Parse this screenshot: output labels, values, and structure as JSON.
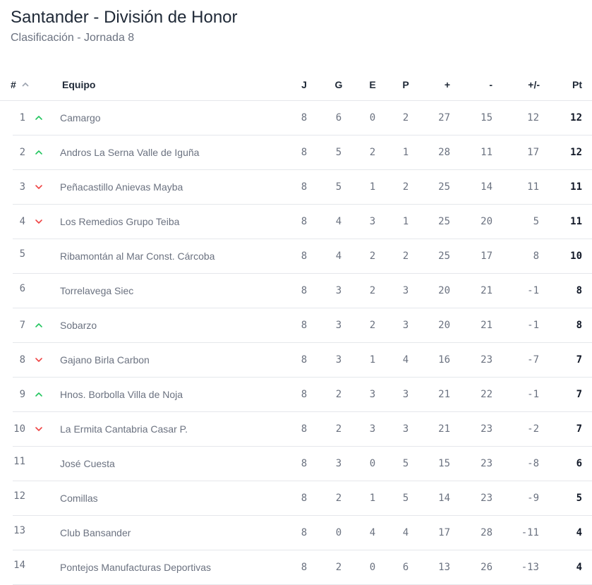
{
  "title": "Santander - División de Honor",
  "subtitle": "Clasificación - Jornada 8",
  "colors": {
    "up": "#22c55e",
    "down": "#ef4444"
  },
  "header": {
    "pos": "#",
    "team": "Equipo",
    "j": "J",
    "g": "G",
    "e": "E",
    "p": "P",
    "gf": "+",
    "ga": "-",
    "diff": "+/-",
    "pts": "Pt",
    "sort_icon": "chevron-up-icon"
  },
  "rows": [
    {
      "pos": "1",
      "trend": "up",
      "team": "Camargo",
      "j": "8",
      "g": "6",
      "e": "0",
      "p": "2",
      "gf": "27",
      "ga": "15",
      "diff": "12",
      "pts": "12"
    },
    {
      "pos": "2",
      "trend": "up",
      "team": "Andros La Serna Valle de Iguña",
      "j": "8",
      "g": "5",
      "e": "2",
      "p": "1",
      "gf": "28",
      "ga": "11",
      "diff": "17",
      "pts": "12"
    },
    {
      "pos": "3",
      "trend": "down",
      "team": "Peñacastillo Anievas Mayba",
      "j": "8",
      "g": "5",
      "e": "1",
      "p": "2",
      "gf": "25",
      "ga": "14",
      "diff": "11",
      "pts": "11"
    },
    {
      "pos": "4",
      "trend": "down",
      "team": "Los Remedios Grupo Teiba",
      "j": "8",
      "g": "4",
      "e": "3",
      "p": "1",
      "gf": "25",
      "ga": "20",
      "diff": "5",
      "pts": "11"
    },
    {
      "pos": "5",
      "trend": "none",
      "team": "Ribamontán al Mar Const. Cárcoba",
      "j": "8",
      "g": "4",
      "e": "2",
      "p": "2",
      "gf": "25",
      "ga": "17",
      "diff": "8",
      "pts": "10"
    },
    {
      "pos": "6",
      "trend": "none",
      "team": "Torrelavega Siec",
      "j": "8",
      "g": "3",
      "e": "2",
      "p": "3",
      "gf": "20",
      "ga": "21",
      "diff": "-1",
      "pts": "8"
    },
    {
      "pos": "7",
      "trend": "up",
      "team": "Sobarzo",
      "j": "8",
      "g": "3",
      "e": "2",
      "p": "3",
      "gf": "20",
      "ga": "21",
      "diff": "-1",
      "pts": "8"
    },
    {
      "pos": "8",
      "trend": "down",
      "team": "Gajano Birla Carbon",
      "j": "8",
      "g": "3",
      "e": "1",
      "p": "4",
      "gf": "16",
      "ga": "23",
      "diff": "-7",
      "pts": "7"
    },
    {
      "pos": "9",
      "trend": "up",
      "team": "Hnos. Borbolla Villa de Noja",
      "j": "8",
      "g": "2",
      "e": "3",
      "p": "3",
      "gf": "21",
      "ga": "22",
      "diff": "-1",
      "pts": "7"
    },
    {
      "pos": "10",
      "trend": "down",
      "team": "La Ermita Cantabria Casar P.",
      "j": "8",
      "g": "2",
      "e": "3",
      "p": "3",
      "gf": "21",
      "ga": "23",
      "diff": "-2",
      "pts": "7"
    },
    {
      "pos": "11",
      "trend": "none",
      "team": "José Cuesta",
      "j": "8",
      "g": "3",
      "e": "0",
      "p": "5",
      "gf": "15",
      "ga": "23",
      "diff": "-8",
      "pts": "6"
    },
    {
      "pos": "12",
      "trend": "none",
      "team": "Comillas",
      "j": "8",
      "g": "2",
      "e": "1",
      "p": "5",
      "gf": "14",
      "ga": "23",
      "diff": "-9",
      "pts": "5"
    },
    {
      "pos": "13",
      "trend": "none",
      "team": "Club Bansander",
      "j": "8",
      "g": "0",
      "e": "4",
      "p": "4",
      "gf": "17",
      "ga": "28",
      "diff": "-11",
      "pts": "4"
    },
    {
      "pos": "14",
      "trend": "none",
      "team": "Pontejos Manufacturas Deportivas",
      "j": "8",
      "g": "2",
      "e": "0",
      "p": "6",
      "gf": "13",
      "ga": "26",
      "diff": "-13",
      "pts": "4"
    }
  ]
}
